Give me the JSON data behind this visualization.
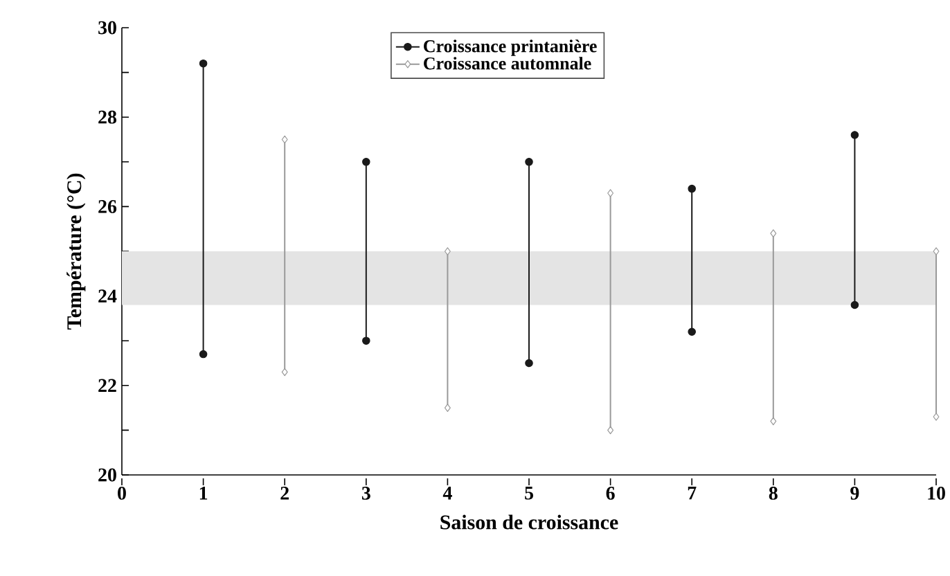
{
  "chart_data": {
    "type": "line",
    "xlabel": "Saison de croissance",
    "ylabel": "Température (°C)",
    "xlim": [
      0,
      10
    ],
    "ylim": [
      20,
      30
    ],
    "xticks": [
      0,
      1,
      2,
      3,
      4,
      5,
      6,
      7,
      8,
      9,
      10
    ],
    "yticks": [
      20,
      {
        "value": 21,
        "label": null
      },
      22,
      {
        "value": 23,
        "label": null
      },
      24,
      {
        "value": 25,
        "label": null
      },
      26,
      {
        "value": 27,
        "label": null
      },
      28,
      {
        "value": 29,
        "label": null
      },
      30
    ],
    "legend": "top",
    "bands": [
      {
        "axis": "y",
        "from": 23.8,
        "to": 25.0,
        "color": "#e4e4e4"
      }
    ],
    "series": [
      {
        "name": "Croissance printanière",
        "color": "#1a1a1a",
        "marker": "circle",
        "x": [
          1,
          1,
          null,
          3,
          3,
          null,
          5,
          5,
          null,
          7,
          7,
          null,
          9,
          9
        ],
        "values": [
          22.7,
          29.2,
          null,
          23.0,
          27.0,
          null,
          22.5,
          27.0,
          null,
          23.2,
          26.4,
          null,
          23.8,
          27.6
        ]
      },
      {
        "name": "Croissance automnale",
        "color": "#999999",
        "marker": "diamond",
        "x": [
          2,
          2,
          null,
          4,
          4,
          null,
          6,
          6,
          null,
          8,
          8,
          null,
          10,
          10
        ],
        "values": [
          22.3,
          27.5,
          null,
          21.5,
          25.0,
          null,
          21.0,
          26.3,
          null,
          21.2,
          25.4,
          null,
          21.3,
          25.0
        ]
      }
    ]
  }
}
